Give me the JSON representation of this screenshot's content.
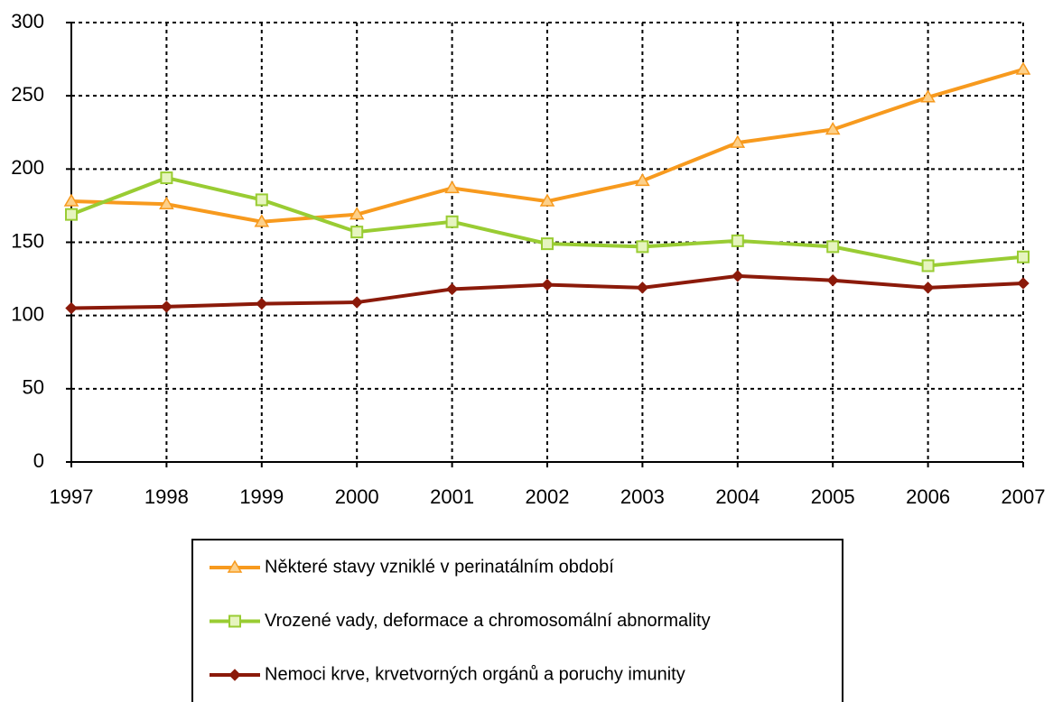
{
  "chart_data": {
    "type": "line",
    "categories": [
      "1997",
      "1998",
      "1999",
      "2000",
      "2001",
      "2002",
      "2003",
      "2004",
      "2005",
      "2006",
      "2007"
    ],
    "series": [
      {
        "name": "Některé stavy vzniklé v perinatálním období",
        "color": "#f79a1e",
        "marker": "triangle",
        "values": [
          178,
          176,
          164,
          169,
          187,
          178,
          192,
          218,
          227,
          249,
          268
        ]
      },
      {
        "name": "Vrozené vady, deformace a chromosomální abnormality",
        "color": "#99cc33",
        "marker": "square",
        "values": [
          169,
          194,
          179,
          157,
          164,
          149,
          147,
          151,
          147,
          134,
          140
        ]
      },
      {
        "name": "Nemoci krve, krvetvorných orgánů a poruchy imunity",
        "color": "#8b1a0a",
        "marker": "diamond",
        "values": [
          105,
          106,
          108,
          109,
          118,
          121,
          119,
          127,
          124,
          119,
          122
        ]
      }
    ],
    "ylim": [
      0,
      300
    ],
    "yticks": [
      0,
      50,
      100,
      150,
      200,
      250,
      300
    ],
    "grid": true,
    "legend": "bottom"
  }
}
